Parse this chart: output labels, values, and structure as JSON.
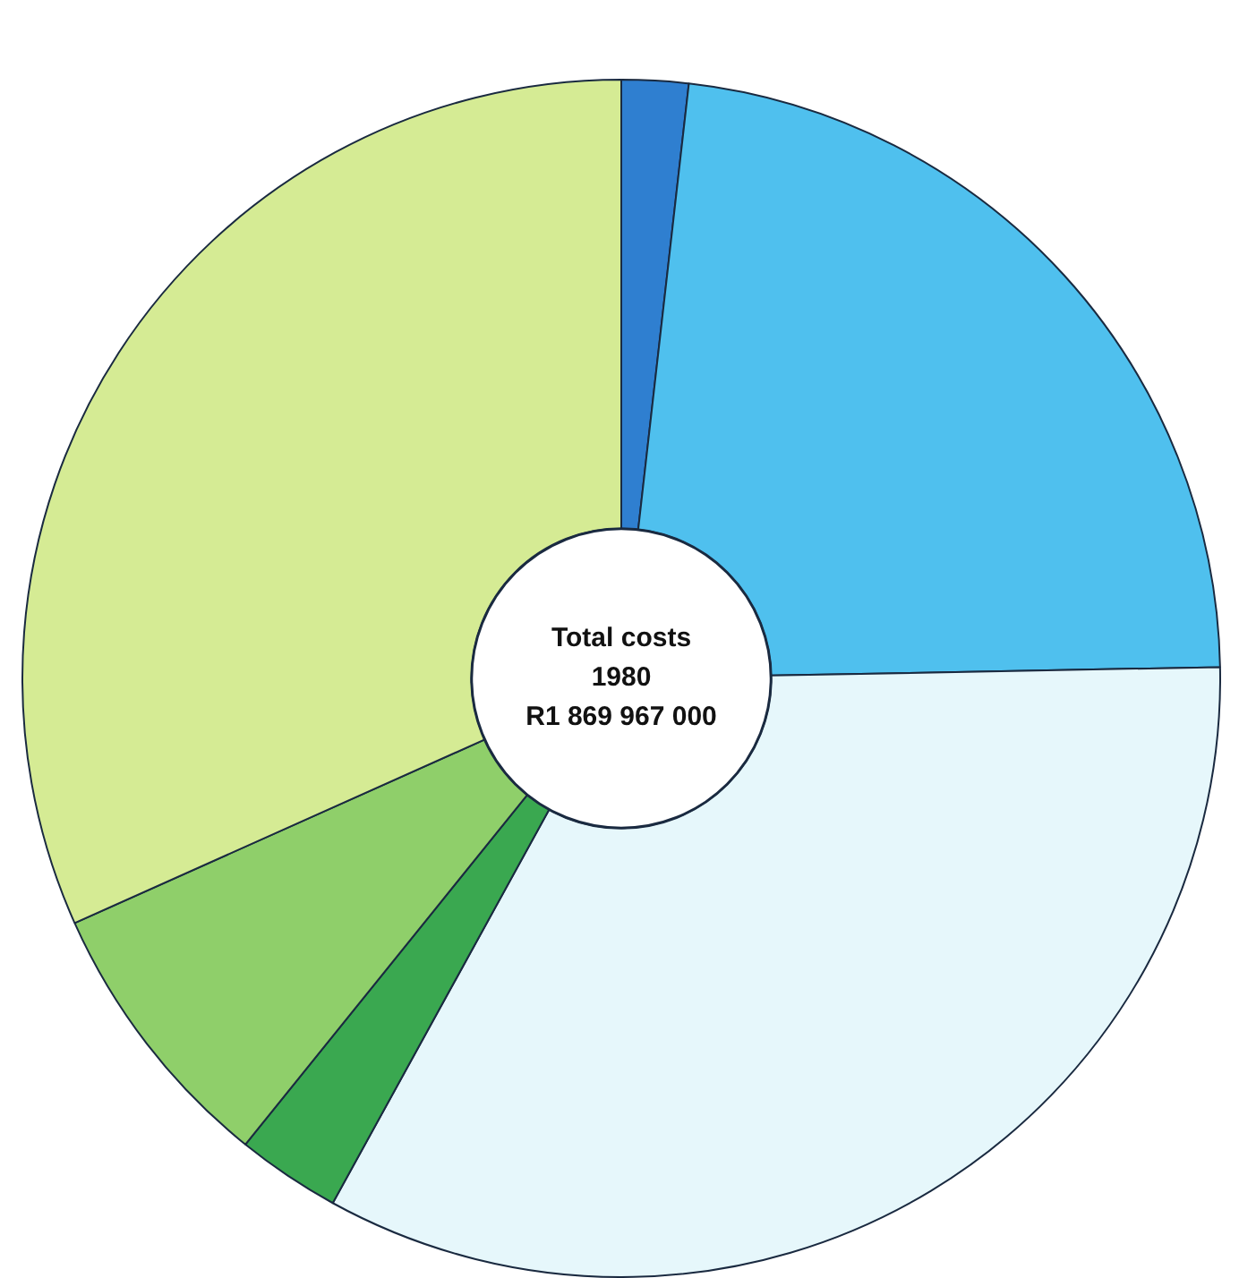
{
  "chart_data": {
    "type": "donut",
    "categories": [
      null,
      null,
      null,
      null,
      null,
      null
    ],
    "values": [
      1.8,
      22.9,
      33.3,
      2.8,
      7.5,
      31.7
    ],
    "colors": [
      "#2f7fd0",
      "#4fc0ee",
      "#e6f7fb",
      "#3aa850",
      "#8fcf6a",
      "#d5eb94"
    ],
    "annotations": [
      "Total costs",
      "1980",
      "R1 869 967 000"
    ],
    "legend": false
  }
}
